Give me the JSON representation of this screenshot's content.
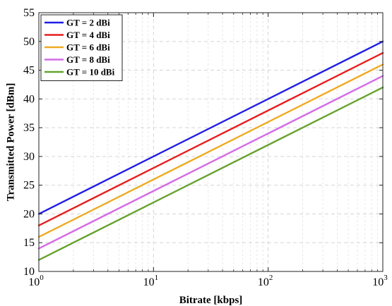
{
  "chart_data": {
    "type": "line",
    "title": "",
    "xlabel": "Bitrate [kbps]",
    "ylabel": "Transmitted Power [dBm]",
    "xscale": "log",
    "xlim": [
      1,
      1000
    ],
    "ylim": [
      10,
      55
    ],
    "xticks": [
      {
        "value": 1,
        "base": "10",
        "exp": "0"
      },
      {
        "value": 10,
        "base": "10",
        "exp": "1"
      },
      {
        "value": 100,
        "base": "10",
        "exp": "2"
      },
      {
        "value": 1000,
        "base": "10",
        "exp": "3"
      }
    ],
    "yticks": [
      "10",
      "15",
      "20",
      "25",
      "30",
      "35",
      "40",
      "45",
      "50",
      "55"
    ],
    "grid": true,
    "legend_position": "top-left",
    "x": [
      1,
      1000
    ],
    "series": [
      {
        "name": "GT = 2 dBi",
        "color": "#1f1fe6",
        "values": [
          20,
          50
        ]
      },
      {
        "name": "GT = 4 dBi",
        "color": "#e61f1f",
        "values": [
          18,
          48
        ]
      },
      {
        "name": "GT = 6 dBi",
        "color": "#efaa22",
        "values": [
          16,
          46
        ]
      },
      {
        "name": "GT = 8 dBi",
        "color": "#d36ae6",
        "values": [
          14,
          44
        ]
      },
      {
        "name": "GT = 10 dBi",
        "color": "#66a32e",
        "values": [
          12,
          42
        ]
      }
    ]
  }
}
